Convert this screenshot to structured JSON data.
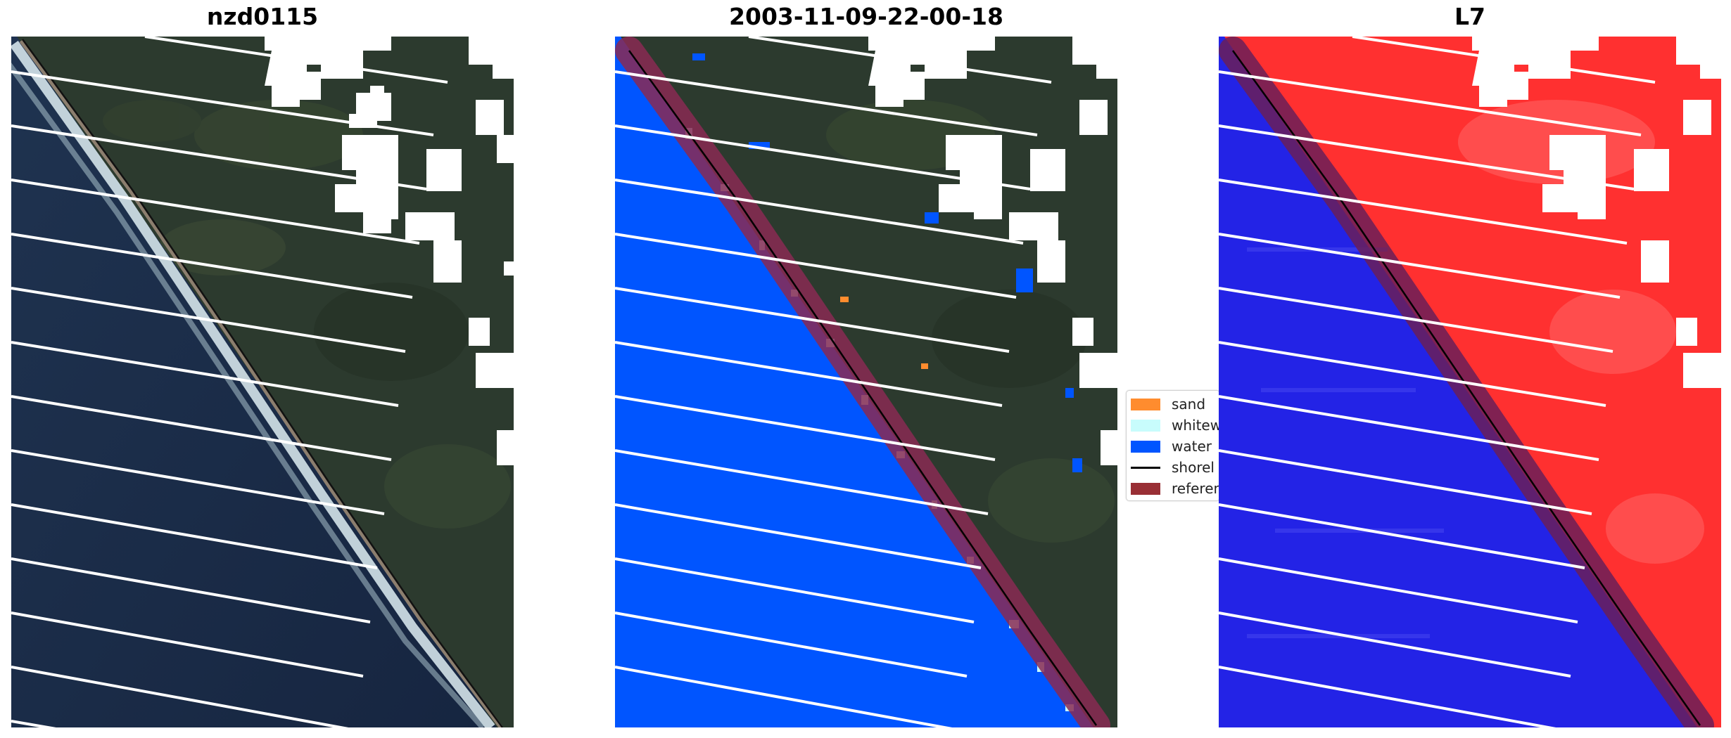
{
  "panels": [
    {
      "title": "nzd0115"
    },
    {
      "title": "2003-11-09-22-00-18"
    },
    {
      "title": "L7"
    }
  ],
  "legend": {
    "items": [
      {
        "label": "sand",
        "color": "#ff8c2e",
        "kind": "patch"
      },
      {
        "label": "whitew",
        "color": "#c8fcfc",
        "kind": "patch"
      },
      {
        "label": "water",
        "color": "#0055ff",
        "kind": "patch"
      },
      {
        "label": "shorel",
        "color": "#000000",
        "kind": "line"
      },
      {
        "label": "referen",
        "color": "#992f35",
        "kind": "patch"
      }
    ]
  },
  "colors": {
    "ocean": "#1a2a44",
    "land": "#2b3a2e",
    "surf": "#e8f2f5",
    "water_class": "#0055ff",
    "reference_buffer": "#8a2a52",
    "l7_water": "#2323e6",
    "l7_land": "#ff2e2e",
    "cloud_mask": "#ffffff"
  }
}
